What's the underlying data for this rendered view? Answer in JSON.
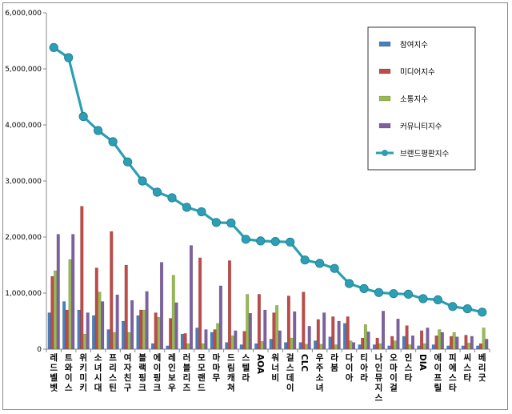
{
  "chart_data": {
    "type": "bar",
    "title": "",
    "xlabel": "",
    "ylabel": "",
    "ylim": [
      0,
      6000000
    ],
    "yticks": [
      "0",
      "1,000,000",
      "2,000,000",
      "3,000,000",
      "4,000,000",
      "5,000,000",
      "6,000,000"
    ],
    "grid": false,
    "legend_position": "top-right",
    "categories": [
      "레드벨벳",
      "트와이스",
      "위키미키",
      "소녀시대",
      "프리스틴",
      "여자친구",
      "블랙핑크",
      "에이핑크",
      "레인보우",
      "러블리즈",
      "모모랜드",
      "마마무",
      "드림캐쳐",
      "스텔라",
      "AOA",
      "워너비",
      "걸스데이",
      "CLC",
      "우주소녀",
      "라붐",
      "다이아",
      "티아라",
      "나인뮤지스",
      "오마이걸",
      "인스타",
      "DIA",
      "에이프릴",
      "피에스타",
      "씨스타",
      "베리굿"
    ],
    "series": [
      {
        "name": "참여지수",
        "type": "bar",
        "color": "#4a7ebb",
        "values": [
          650000,
          850000,
          700000,
          600000,
          350000,
          500000,
          600000,
          100000,
          60000,
          270000,
          380000,
          300000,
          120000,
          80000,
          100000,
          180000,
          120000,
          120000,
          150000,
          220000,
          460000,
          80000,
          80000,
          60000,
          230000,
          60000,
          80000,
          60000,
          60000,
          60000
        ]
      },
      {
        "name": "미디어지수",
        "type": "bar",
        "color": "#be4b48",
        "values": [
          1300000,
          700000,
          2550000,
          1450000,
          2100000,
          1500000,
          700000,
          650000,
          550000,
          280000,
          1630000,
          350000,
          1580000,
          320000,
          980000,
          650000,
          950000,
          1020000,
          530000,
          580000,
          580000,
          200000,
          200000,
          230000,
          420000,
          330000,
          240000,
          230000,
          250000,
          100000
        ]
      },
      {
        "name": "소통지수",
        "type": "bar",
        "color": "#98b954",
        "values": [
          1400000,
          1600000,
          270000,
          1020000,
          300000,
          300000,
          700000,
          570000,
          1320000,
          100000,
          100000,
          460000,
          240000,
          980000,
          140000,
          780000,
          200000,
          90000,
          90000,
          80000,
          150000,
          440000,
          100000,
          150000,
          80000,
          100000,
          350000,
          300000,
          110000,
          380000
        ]
      },
      {
        "name": "커뮤니티지수",
        "type": "bar",
        "color": "#7d60a0",
        "values": [
          2050000,
          2050000,
          650000,
          850000,
          970000,
          870000,
          1030000,
          1550000,
          830000,
          1850000,
          350000,
          1130000,
          330000,
          640000,
          700000,
          330000,
          670000,
          410000,
          650000,
          500000,
          120000,
          310000,
          680000,
          540000,
          240000,
          380000,
          300000,
          220000,
          230000,
          180000
        ]
      },
      {
        "name": "브랜드평판지수",
        "type": "line",
        "color": "#2c9fb4",
        "values": [
          5380000,
          5200000,
          4150000,
          3900000,
          3700000,
          3340000,
          3000000,
          2800000,
          2700000,
          2530000,
          2450000,
          2260000,
          2250000,
          1960000,
          1930000,
          1920000,
          1910000,
          1590000,
          1530000,
          1440000,
          1170000,
          1080000,
          1010000,
          990000,
          980000,
          900000,
          880000,
          760000,
          720000,
          660000
        ]
      }
    ]
  }
}
